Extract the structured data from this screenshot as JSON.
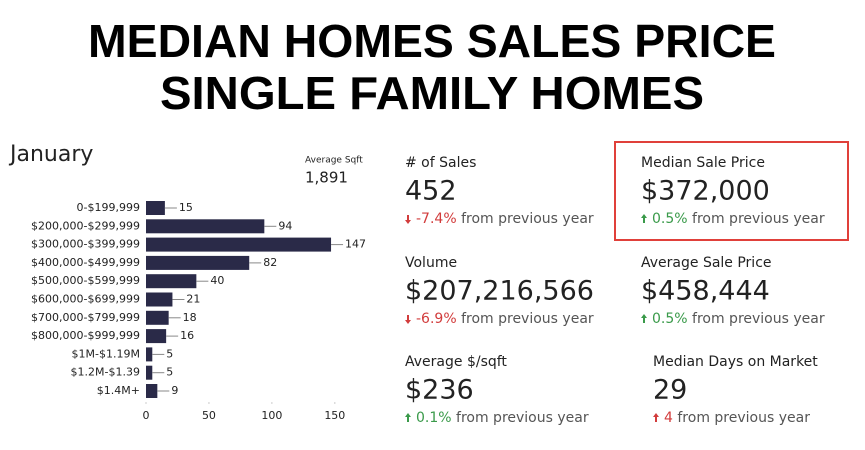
{
  "header": {
    "title_lines": [
      "MEDIAN HOMES SALES PRICE",
      "SINGLE FAMILY HOMES"
    ]
  },
  "chart_data": {
    "type": "bar",
    "orientation": "horizontal",
    "title": "January",
    "categories": [
      "0-$199,999",
      "$200,000-$299,999",
      "$300,000-$399,999",
      "$400,000-$499,999",
      "$500,000-$599,999",
      "$600,000-$699,999",
      "$700,000-$799,999",
      "$800,000-$999,999",
      "$1M-$1.19M",
      "$1.2M-$1.39",
      "$1.4M+"
    ],
    "values": [
      15,
      94,
      147,
      82,
      40,
      21,
      18,
      16,
      5,
      5,
      9
    ],
    "color": "#2a2a48",
    "xlim": [
      0,
      170
    ],
    "xticks": [
      0,
      50,
      100,
      150
    ],
    "grid": false
  },
  "average_sqft": {
    "label": "Average Sqft",
    "value": "1,891"
  },
  "stats": [
    {
      "label": "# of Sales",
      "value": "452",
      "change": "-7.4%",
      "comparison": "from previous year",
      "arrow": "down",
      "color": "#d23c3c"
    },
    {
      "label": "Median Sale Price",
      "value": "$372,000",
      "change": "0.5%",
      "comparison": "from previous year",
      "arrow": "up",
      "color": "#3a9a4a",
      "highlight": "#e0403a"
    },
    {
      "label": "Volume",
      "value": "$207,216,566",
      "change": "-6.9%",
      "comparison": "from previous year",
      "arrow": "down",
      "color": "#d23c3c"
    },
    {
      "label": "Average Sale Price",
      "value": "$458,444",
      "change": "0.5%",
      "comparison": "from previous year",
      "arrow": "up",
      "color": "#3a9a4a"
    },
    {
      "label": "Average $/sqft",
      "value": "$236",
      "change": "0.1%",
      "comparison": "from previous year",
      "arrow": "up",
      "color": "#3a9a4a"
    },
    {
      "label": "Median Days on Market",
      "value": "29",
      "change": "4",
      "comparison": "from previous year",
      "arrow": "up",
      "color": "#d23c3c"
    }
  ]
}
